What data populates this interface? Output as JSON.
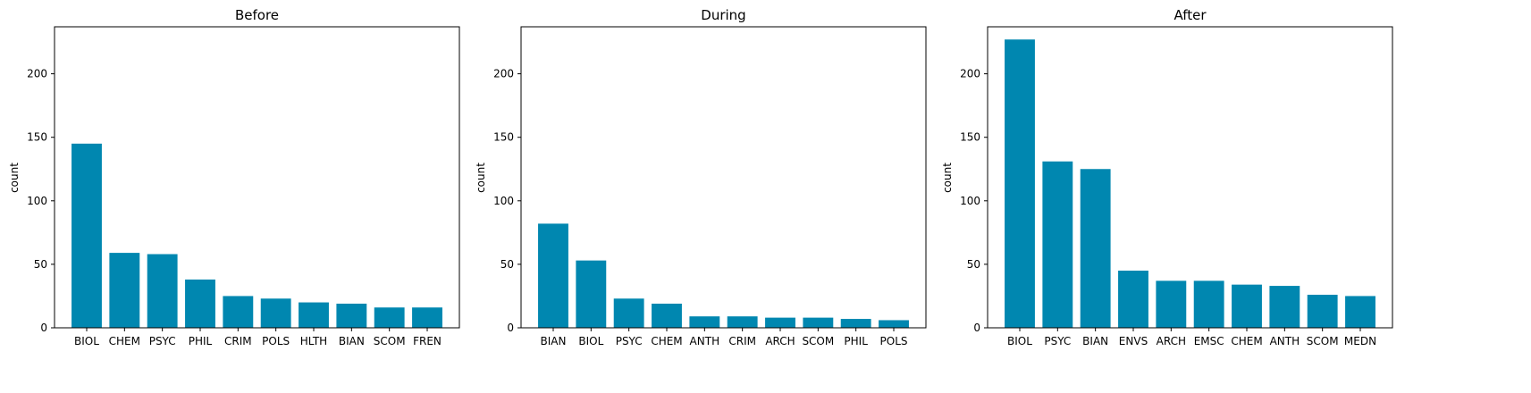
{
  "chart_data": [
    {
      "type": "bar",
      "title": "Before",
      "xlabel": "",
      "ylabel": "count",
      "ylim": [
        0,
        237
      ],
      "yticks": [
        0,
        50,
        100,
        150,
        200
      ],
      "categories": [
        "BIOL",
        "CHEM",
        "PSYC",
        "PHIL",
        "CRIM",
        "POLS",
        "HLTH",
        "BIAN",
        "SCOM",
        "FREN"
      ],
      "values": [
        145,
        59,
        58,
        38,
        25,
        23,
        20,
        19,
        16,
        16
      ],
      "bar_color": "#0087b0",
      "grid": false
    },
    {
      "type": "bar",
      "title": "During",
      "xlabel": "",
      "ylabel": "count",
      "ylim": [
        0,
        237
      ],
      "yticks": [
        0,
        50,
        100,
        150,
        200
      ],
      "categories": [
        "BIAN",
        "BIOL",
        "PSYC",
        "CHEM",
        "ANTH",
        "CRIM",
        "ARCH",
        "SCOM",
        "PHIL",
        "POLS"
      ],
      "values": [
        82,
        53,
        23,
        19,
        9,
        9,
        8,
        8,
        7,
        6
      ],
      "bar_color": "#0087b0",
      "grid": false
    },
    {
      "type": "bar",
      "title": "After",
      "xlabel": "",
      "ylabel": "count",
      "ylim": [
        0,
        237
      ],
      "yticks": [
        0,
        50,
        100,
        150,
        200
      ],
      "categories": [
        "BIOL",
        "PSYC",
        "BIAN",
        "ENVS",
        "ARCH",
        "EMSC",
        "CHEM",
        "ANTH",
        "SCOM",
        "MEDN"
      ],
      "values": [
        227,
        131,
        125,
        45,
        37,
        37,
        34,
        33,
        26,
        25
      ],
      "bar_color": "#0087b0",
      "grid": false
    }
  ]
}
